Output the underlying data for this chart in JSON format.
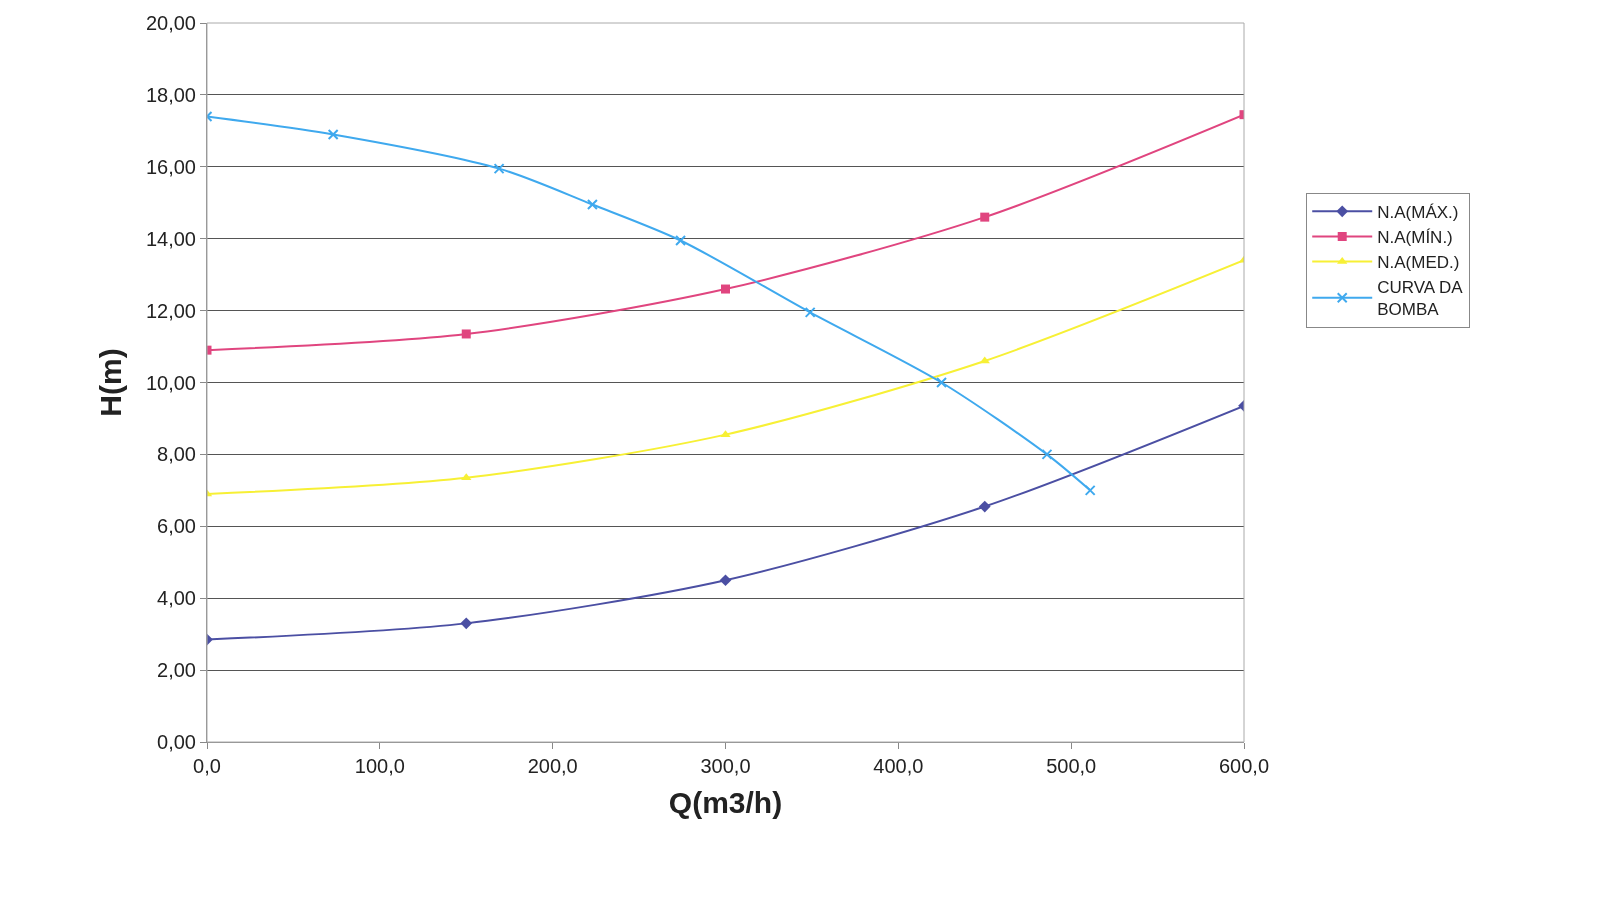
{
  "chart_data": {
    "type": "line",
    "xlabel": "Q(m3/h)",
    "ylabel": "H(m)",
    "xlim": [
      0,
      600
    ],
    "ylim": [
      0,
      20
    ],
    "xticks": [
      {
        "value": 0,
        "label": "0,0"
      },
      {
        "value": 100,
        "label": "100,0"
      },
      {
        "value": 200,
        "label": "200,0"
      },
      {
        "value": 300,
        "label": "300,0"
      },
      {
        "value": 400,
        "label": "400,0"
      },
      {
        "value": 500,
        "label": "500,0"
      },
      {
        "value": 600,
        "label": "600,0"
      }
    ],
    "yticks": [
      {
        "value": 0,
        "label": "0,00"
      },
      {
        "value": 2,
        "label": "2,00"
      },
      {
        "value": 4,
        "label": "4,00"
      },
      {
        "value": 6,
        "label": "6,00"
      },
      {
        "value": 8,
        "label": "8,00"
      },
      {
        "value": 10,
        "label": "10,00"
      },
      {
        "value": 12,
        "label": "12,00"
      },
      {
        "value": 14,
        "label": "14,00"
      },
      {
        "value": 16,
        "label": "16,00"
      },
      {
        "value": 18,
        "label": "18,00"
      },
      {
        "value": 20,
        "label": "20,00"
      }
    ],
    "grid": "y",
    "legend": "right",
    "line_style": "solid",
    "series": [
      {
        "name": "N.A(MÁX.)",
        "color": "#4b4fa3",
        "marker": "diamond",
        "x": [
          0,
          150,
          300,
          450,
          600
        ],
        "values": [
          2.85,
          3.3,
          4.5,
          6.55,
          9.35
        ]
      },
      {
        "name": "N.A(MÍN.)",
        "color": "#e0457f",
        "marker": "square",
        "x": [
          0,
          150,
          300,
          450,
          600
        ],
        "values": [
          10.9,
          11.35,
          12.6,
          14.6,
          17.45
        ]
      },
      {
        "name": "N.A(MED.)",
        "color": "#f7f035",
        "marker": "triangle",
        "x": [
          0,
          150,
          300,
          450,
          600
        ],
        "values": [
          6.9,
          7.35,
          8.55,
          10.6,
          13.4
        ]
      },
      {
        "name": "CURVA DA BOMBA",
        "color": "#3fa9ee",
        "marker": "cross",
        "x": [
          0,
          73,
          169,
          223,
          274,
          349,
          425,
          486,
          511
        ],
        "values": [
          17.4,
          16.9,
          15.95,
          14.95,
          13.95,
          11.95,
          10,
          8,
          7
        ]
      }
    ]
  }
}
